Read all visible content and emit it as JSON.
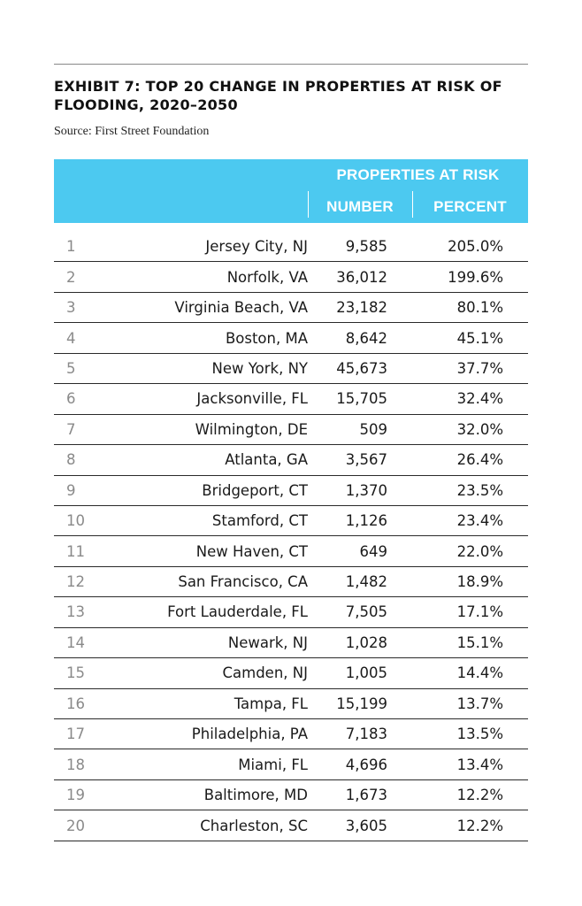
{
  "exhibit": {
    "title": "EXHIBIT 7: TOP 20 CHANGE IN PROPERTIES AT RISK OF FLOODING, 2020–2050",
    "source": "Source: First Street Foundation"
  },
  "table": {
    "header_group": "PROPERTIES AT RISK",
    "columns": [
      "NUMBER",
      "PERCENT"
    ],
    "header_color": "#4cc9f0",
    "rows": [
      {
        "rank": "1",
        "city": "Jersey City, NJ",
        "number": "9,585",
        "percent": "205.0%"
      },
      {
        "rank": "2",
        "city": "Norfolk, VA",
        "number": "36,012",
        "percent": "199.6%"
      },
      {
        "rank": "3",
        "city": "Virginia Beach, VA",
        "number": "23,182",
        "percent": "80.1%"
      },
      {
        "rank": "4",
        "city": "Boston, MA",
        "number": "8,642",
        "percent": "45.1%"
      },
      {
        "rank": "5",
        "city": "New York, NY",
        "number": "45,673",
        "percent": "37.7%"
      },
      {
        "rank": "6",
        "city": "Jacksonville, FL",
        "number": "15,705",
        "percent": "32.4%"
      },
      {
        "rank": "7",
        "city": "Wilmington, DE",
        "number": "509",
        "percent": "32.0%"
      },
      {
        "rank": "8",
        "city": "Atlanta, GA",
        "number": "3,567",
        "percent": "26.4%"
      },
      {
        "rank": "9",
        "city": "Bridgeport, CT",
        "number": "1,370",
        "percent": "23.5%"
      },
      {
        "rank": "10",
        "city": "Stamford, CT",
        "number": "1,126",
        "percent": "23.4%"
      },
      {
        "rank": "11",
        "city": "New Haven, CT",
        "number": "649",
        "percent": "22.0%"
      },
      {
        "rank": "12",
        "city": "San Francisco, CA",
        "number": "1,482",
        "percent": "18.9%"
      },
      {
        "rank": "13",
        "city": "Fort Lauderdale, FL",
        "number": "7,505",
        "percent": "17.1%"
      },
      {
        "rank": "14",
        "city": "Newark, NJ",
        "number": "1,028",
        "percent": "15.1%"
      },
      {
        "rank": "15",
        "city": "Camden, NJ",
        "number": "1,005",
        "percent": "14.4%"
      },
      {
        "rank": "16",
        "city": "Tampa, FL",
        "number": "15,199",
        "percent": "13.7%"
      },
      {
        "rank": "17",
        "city": "Philadelphia, PA",
        "number": "7,183",
        "percent": "13.5%"
      },
      {
        "rank": "18",
        "city": "Miami, FL",
        "number": "4,696",
        "percent": "13.4%"
      },
      {
        "rank": "19",
        "city": "Baltimore, MD",
        "number": "1,673",
        "percent": "12.2%"
      },
      {
        "rank": "20",
        "city": "Charleston, SC",
        "number": "3,605",
        "percent": "12.2%"
      }
    ]
  }
}
